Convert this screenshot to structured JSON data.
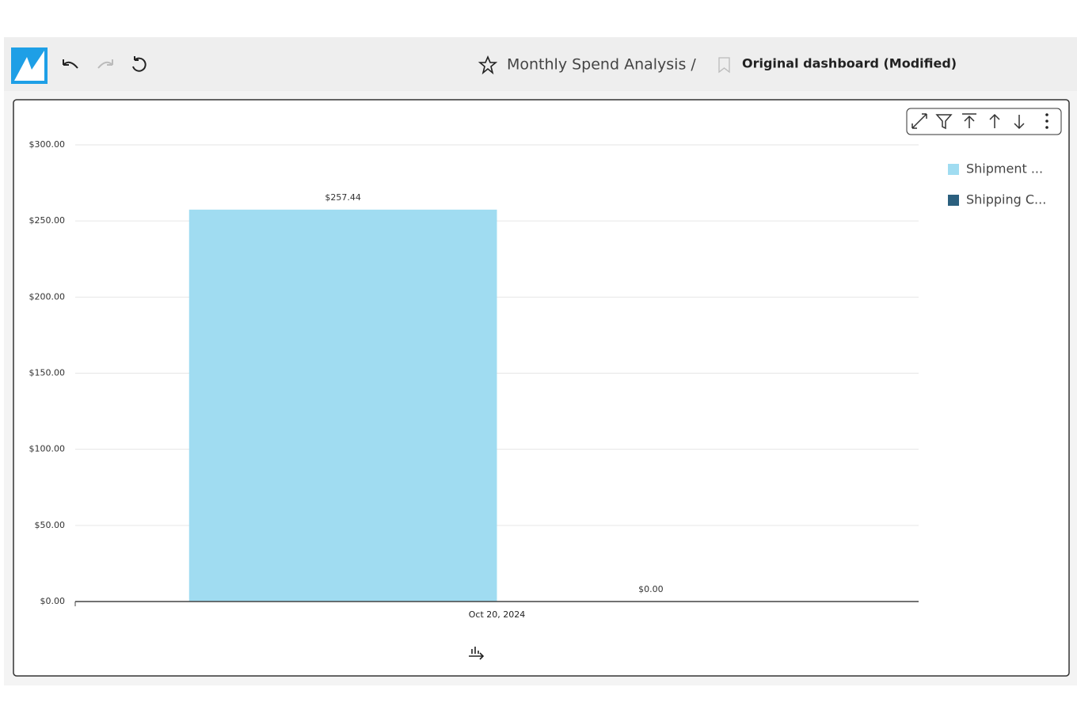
{
  "header": {
    "title": "Monthly Spend Analysis /",
    "sheet": "Original dashboard (Modified)"
  },
  "chart_data": {
    "type": "bar",
    "categories": [
      "Oct 20, 2024"
    ],
    "series": [
      {
        "name": "Shipment ...",
        "color": "#a0dcf1",
        "values": [
          257.44
        ],
        "value_labels": [
          "$257.44"
        ]
      },
      {
        "name": "Shipping C...",
        "color": "#2b5f7e",
        "values": [
          0
        ],
        "value_labels": [
          "$0.00"
        ]
      }
    ],
    "ylim": [
      0,
      300
    ],
    "yticks": [
      {
        "value": 0,
        "label": "$0.00"
      },
      {
        "value": 50,
        "label": "$50.00"
      },
      {
        "value": 100,
        "label": "$100.00"
      },
      {
        "value": 150,
        "label": "$150.00"
      },
      {
        "value": 200,
        "label": "$200.00"
      },
      {
        "value": 250,
        "label": "$250.00"
      },
      {
        "value": 300,
        "label": "$300.00"
      }
    ],
    "grid": true
  }
}
